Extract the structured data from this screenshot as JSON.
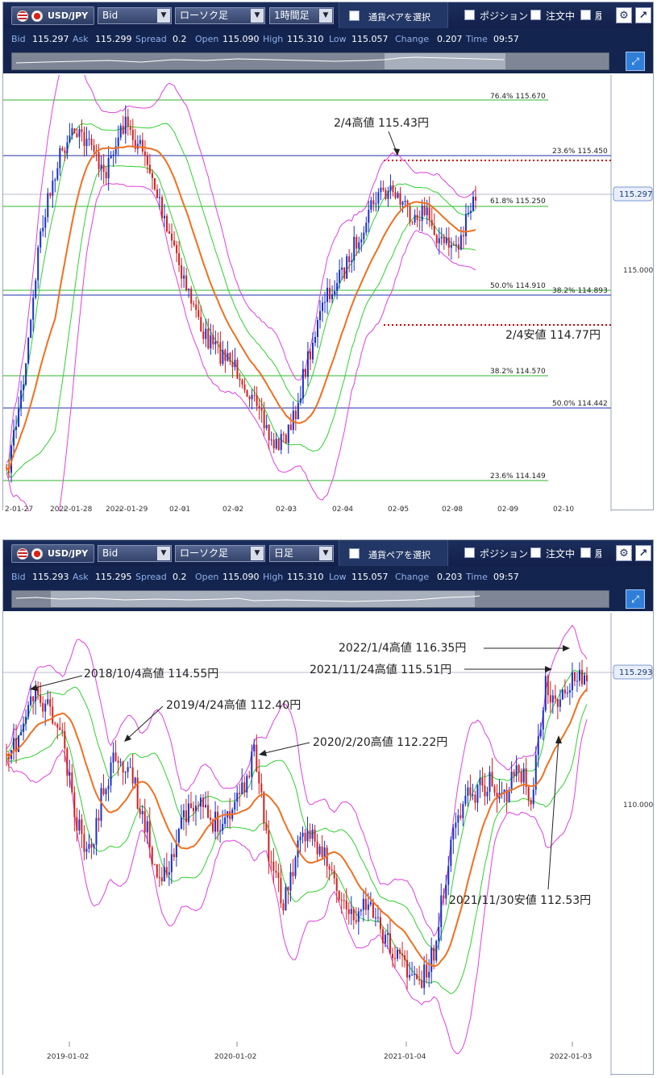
{
  "panel1": {
    "pair": "USD/JPY",
    "price_type": "Bid",
    "chart_type": "ローソク足",
    "timeframe": "1時間足",
    "select_pair": "通貨ペアを選択",
    "positions": "ポジション",
    "orders": "注文中",
    "history_short": "履",
    "info": {
      "bid_label": "Bid",
      "bid": "115.297",
      "ask_label": "Ask",
      "ask": "115.299",
      "spread_label": "Spread",
      "spread": "0.2",
      "open_label": "Open",
      "open": "115.090",
      "high_label": "High",
      "high": "115.310",
      "low_label": "Low",
      "low": "115.057",
      "change_label": "Change",
      "change": "0.207",
      "time_label": "Time",
      "time": "09:57"
    },
    "current_price": "115.297",
    "y_tick": "115.000",
    "x_ticks": [
      "2-01-27",
      "2022-01-28",
      "2022-01-29",
      "02-01",
      "02-02",
      "02-03",
      "02-04",
      "02-05",
      "02-08",
      "02-09",
      "02-10"
    ],
    "fib_labels": [
      {
        "text": "76.4%  115.670"
      },
      {
        "text": "23.6%  115.450"
      },
      {
        "text": "61.8%  115.250"
      },
      {
        "text": "50.0%  114.910"
      },
      {
        "text": "38.2%  114.893"
      },
      {
        "text": "38.2%  114.570"
      },
      {
        "text": "50.0%  114.442"
      },
      {
        "text": "23.6%  114.149"
      }
    ],
    "annotations": {
      "high": "2/4高値 115.43円",
      "low": "2/4安値 114.77円"
    }
  },
  "panel2": {
    "pair": "USD/JPY",
    "price_type": "Bid",
    "chart_type": "ローソク足",
    "timeframe": "日足",
    "select_pair": "通貨ペアを選択",
    "positions": "ポジション",
    "orders": "注文中",
    "history_short": "履",
    "info": {
      "bid_label": "Bid",
      "bid": "115.293",
      "ask_label": "Ask",
      "ask": "115.295",
      "spread_label": "Spread",
      "spread": "0.2",
      "open_label": "Open",
      "open": "115.090",
      "high_label": "High",
      "high": "115.310",
      "low_label": "Low",
      "low": "115.057",
      "change_label": "Change",
      "change": "0.203",
      "time_label": "Time",
      "time": "09:57"
    },
    "current_price": "115.293",
    "y_tick": "110.000",
    "x_ticks": [
      "2019-01-02",
      "2020-01-02",
      "2021-01-04",
      "2022-01-03"
    ],
    "annotations": {
      "a1": "2022/1/4高値 116.35円",
      "a2": "2021/11/24高値 115.51円",
      "a3": "2018/10/4高値 114.55円",
      "a4": "2019/4/24高値 112.40円",
      "a5": "2020/2/20高値 112.22円",
      "a6": "2021/11/30安値 112.53円"
    }
  },
  "colors": {
    "toolbar_bg": "#13244f",
    "fib_line": "#2fb52f",
    "fib_blue": "#1f2fa8",
    "bollinger_outer": "#e040e0",
    "bollinger_inner": "#30d030",
    "ma": "#f07020",
    "candle_up": "#1830c8",
    "candle_down": "#d02020",
    "dotted": "#cc0000"
  },
  "icons": {
    "settings": "gear-icon",
    "popout": "popout-arrow-icon",
    "expand": "expand-icon",
    "us_flag": "us-flag-icon",
    "jp_flag": "jp-flag-icon"
  }
}
